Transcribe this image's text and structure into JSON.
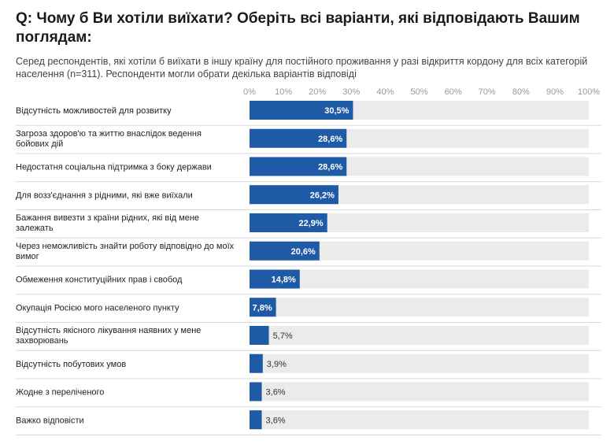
{
  "chart_data": {
    "type": "bar",
    "orientation": "horizontal",
    "title": "Q: Чому б Ви хотіли виїхати? Оберіть всі варіанти, які відповідають Вашим поглядам:",
    "subtitle": "Серед респондентів, які хотіли б виїхати в іншу країну для постійного проживання у разі відкриття кордону для всіх категорій населення (n=311). Респонденти могли обрати декілька варіантів відповіді",
    "xlim": [
      0,
      100
    ],
    "ticks": [
      "0%",
      "10%",
      "20%",
      "30%",
      "40%",
      "50%",
      "60%",
      "70%",
      "80%",
      "90%",
      "100%"
    ],
    "categories": [
      [
        "Відсутність можливостей для розвитку"
      ],
      [
        "Загроза здоров'ю та життю внаслідок ведення",
        "бойових дій"
      ],
      [
        "Недостатня соціальна підтримка з боку держави"
      ],
      [
        "Для возз'єднання з рідними, які вже виїхали"
      ],
      [
        "Бажання вивезти з країни рідних, які від мене",
        "залежать"
      ],
      [
        "Через неможливість знайти роботу відповідно до моїх",
        "вимог"
      ],
      [
        "Обмеження конституційних прав і свобод"
      ],
      [
        "Окупація Росією мого населеного пункту"
      ],
      [
        "Відсутність якісного лікування наявних у мене",
        "захворювань"
      ],
      [
        "Відсутність побутових умов"
      ],
      [
        "Жодне з переліченого"
      ],
      [
        "Важко відповісти"
      ]
    ],
    "values": [
      30.5,
      28.6,
      28.6,
      26.2,
      22.9,
      20.6,
      14.8,
      7.8,
      5.7,
      3.9,
      3.6,
      3.6
    ],
    "value_labels": [
      "30,5%",
      "28,6%",
      "28,6%",
      "26,2%",
      "22,9%",
      "20,6%",
      "14,8%",
      "7,8%",
      "5,7%",
      "3,9%",
      "3,6%",
      "3,6%"
    ]
  },
  "colors": {
    "bar": "#1f5aa6",
    "track": "#ebebeb",
    "separator": "#d9d9d9"
  }
}
